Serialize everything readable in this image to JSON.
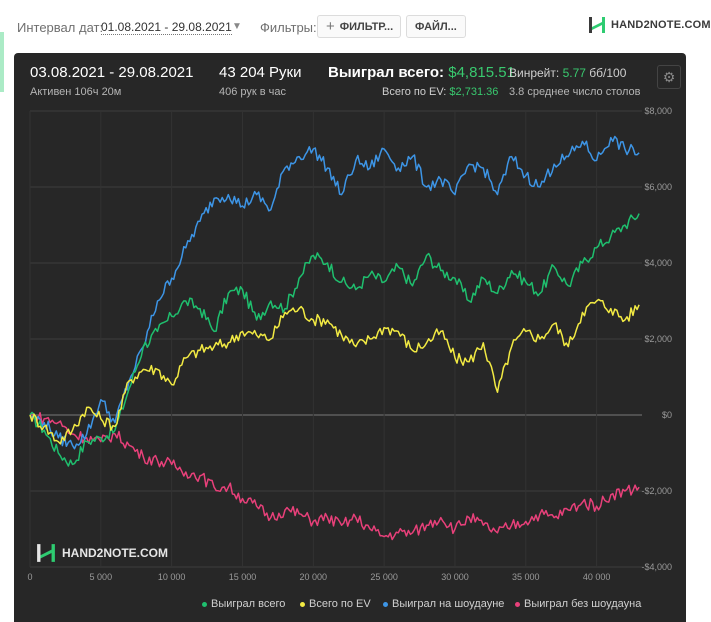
{
  "toolbar": {
    "interval_label": "Интервал дат:",
    "interval_value": "01.08.2021 - 29.08.2021",
    "filters_label": "Фильтры:",
    "filters_button": "ФИЛЬТР...",
    "files_button": "ФАЙЛ...",
    "logo_text": "HAND2NOTE.COM"
  },
  "summary": {
    "date_range": "03.08.2021 - 29.08.2021",
    "active_time": "Активен 106ч 20м",
    "hands_count": "43 204 Руки",
    "hands_per_hour": "406 рук в час",
    "won_total_label": "Выиграл всего:",
    "won_total_value": "$4,815.51",
    "ev_total_label": "Всего по EV:",
    "ev_total_value": "$2,731.36",
    "winrate_label": "Винрейт:",
    "winrate_value": "5.77",
    "winrate_unit": "бб/100",
    "avg_tables": "3.8 среднее число столов"
  },
  "watermark_text": "HAND2NOTE.COM",
  "colors": {
    "won_total": "#1fbf6e",
    "ev_total": "#f2ea43",
    "showdown": "#3d95e6",
    "no_showdown": "#e8407a"
  },
  "chart_data": {
    "type": "line",
    "title": "",
    "xlabel": "",
    "ylabel": "",
    "xlim": [
      0,
      43204
    ],
    "ylim": [
      -4000,
      8000
    ],
    "grid": true,
    "legend": "bottom",
    "x_ticks": [
      0,
      5000,
      10000,
      15000,
      20000,
      25000,
      30000,
      35000,
      40000
    ],
    "x_tick_labels": [
      "0",
      "5 000",
      "10 000",
      "15 000",
      "20 000",
      "25 000",
      "30 000",
      "35 000",
      "40 000"
    ],
    "y_ticks": [
      8000,
      6000,
      4000,
      2000,
      0,
      -2000,
      -4000
    ],
    "y_tick_labels": [
      "$8,000",
      "$6,000",
      "$4,000",
      "$2,000",
      "$0",
      "-$2,000",
      "-$4,000"
    ],
    "x": [
      0,
      1000,
      2000,
      3000,
      4000,
      5000,
      6000,
      7000,
      8000,
      9000,
      10000,
      11000,
      12000,
      13000,
      14000,
      15000,
      16000,
      17000,
      18000,
      19000,
      20000,
      21000,
      22000,
      23000,
      24000,
      25000,
      26000,
      27000,
      28000,
      29000,
      30000,
      31000,
      32000,
      33000,
      34000,
      35000,
      36000,
      37000,
      38000,
      39000,
      40000,
      41000,
      42000,
      43000
    ],
    "series": [
      {
        "name": "Выиграл всего",
        "color_key": "won_total",
        "values": [
          0,
          -400,
          -1000,
          -1300,
          -700,
          -600,
          -400,
          700,
          1800,
          2200,
          2600,
          3000,
          2800,
          2200,
          3200,
          3300,
          2500,
          3000,
          2800,
          3600,
          4200,
          4000,
          3500,
          3300,
          3700,
          3500,
          3900,
          3400,
          4200,
          3800,
          3600,
          3000,
          3600,
          3200,
          3800,
          3500,
          3200,
          3900,
          3400,
          4000,
          4400,
          4700,
          5000,
          5300
        ]
      },
      {
        "name": "Всего по EV",
        "color_key": "ev_total",
        "values": [
          0,
          -300,
          -700,
          -400,
          200,
          -100,
          -300,
          900,
          1200,
          1200,
          800,
          1500,
          1700,
          1800,
          1900,
          2200,
          2100,
          2000,
          2700,
          2800,
          2500,
          2500,
          2100,
          1800,
          2000,
          2300,
          2200,
          1700,
          1900,
          2200,
          1500,
          1400,
          1900,
          600,
          1800,
          2200,
          2000,
          2400,
          1800,
          2700,
          3000,
          2800,
          2500,
          2900
        ]
      },
      {
        "name": "Выиграл на шоудауне",
        "color_key": "showdown",
        "values": [
          0,
          -200,
          -600,
          -800,
          -500,
          400,
          -200,
          900,
          1800,
          3000,
          3600,
          4400,
          5100,
          5700,
          5800,
          5500,
          5800,
          5400,
          6500,
          6800,
          7000,
          6500,
          5800,
          6700,
          6500,
          7000,
          6500,
          6800,
          6000,
          6200,
          5800,
          6600,
          6500,
          5800,
          6800,
          6300,
          6000,
          6600,
          6800,
          7200,
          6700,
          7300,
          7000,
          6900
        ]
      },
      {
        "name": "Выиграл без шоудауна",
        "color_key": "no_showdown",
        "values": [
          0,
          -100,
          -200,
          -500,
          -600,
          -700,
          -500,
          -800,
          -1100,
          -1200,
          -1300,
          -1500,
          -1600,
          -1900,
          -1900,
          -2200,
          -2400,
          -2700,
          -2500,
          -2600,
          -2800,
          -2700,
          -2900,
          -2700,
          -3000,
          -3200,
          -3100,
          -3100,
          -2900,
          -2700,
          -3000,
          -2700,
          -2900,
          -3100,
          -2900,
          -2800,
          -2600,
          -2700,
          -2500,
          -2300,
          -2400,
          -2100,
          -2000,
          -1900
        ]
      }
    ]
  }
}
